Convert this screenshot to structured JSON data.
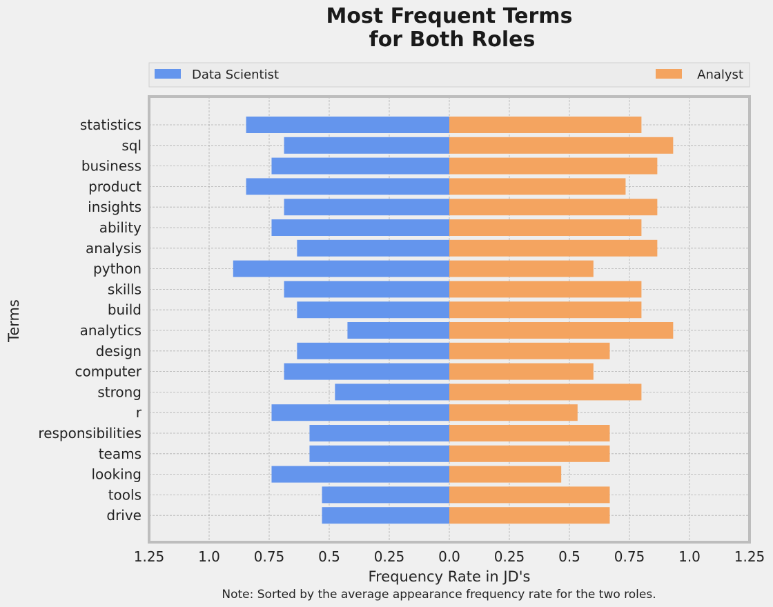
{
  "chart_data": {
    "type": "bar",
    "orientation": "horizontal-diverging",
    "title_lines": [
      "Most Frequent Terms",
      "for Both Roles"
    ],
    "xlabel": "Frequency Rate in JD's",
    "ylabel": "Terms",
    "note": "Note: Sorted by the average appearance frequency rate for the two roles.",
    "xlim": [
      -1.25,
      1.25
    ],
    "xticks": [
      -1.25,
      -1.0,
      -0.75,
      -0.5,
      -0.25,
      0.0,
      0.25,
      0.5,
      0.75,
      1.0,
      1.25
    ],
    "xtick_labels": [
      "1.25",
      "1.0",
      "0.75",
      "0.5",
      "0.25",
      "0.0",
      "0.25",
      "0.5",
      "0.75",
      "1.0",
      "1.25"
    ],
    "legend_position": "top",
    "grid": true,
    "categories": [
      "statistics",
      "sql",
      "business",
      "product",
      "insights",
      "ability",
      "analysis",
      "python",
      "skills",
      "build",
      "analytics",
      "design",
      "computer",
      "strong",
      "r",
      "responsibilities",
      "teams",
      "looking",
      "tools",
      "drive"
    ],
    "series": [
      {
        "name": "Data Scientist",
        "color": "#6495ed",
        "side": "left",
        "values": [
          0.846,
          0.688,
          0.74,
          0.846,
          0.688,
          0.74,
          0.634,
          0.9,
          0.688,
          0.634,
          0.424,
          0.634,
          0.688,
          0.476,
          0.74,
          0.582,
          0.582,
          0.74,
          0.53,
          0.53
        ]
      },
      {
        "name": "Analyst",
        "color": "#f4a460",
        "side": "right",
        "values": [
          0.8,
          0.932,
          0.866,
          0.734,
          0.866,
          0.8,
          0.866,
          0.6,
          0.8,
          0.8,
          0.932,
          0.668,
          0.6,
          0.8,
          0.534,
          0.668,
          0.668,
          0.466,
          0.668,
          0.668
        ]
      }
    ]
  }
}
